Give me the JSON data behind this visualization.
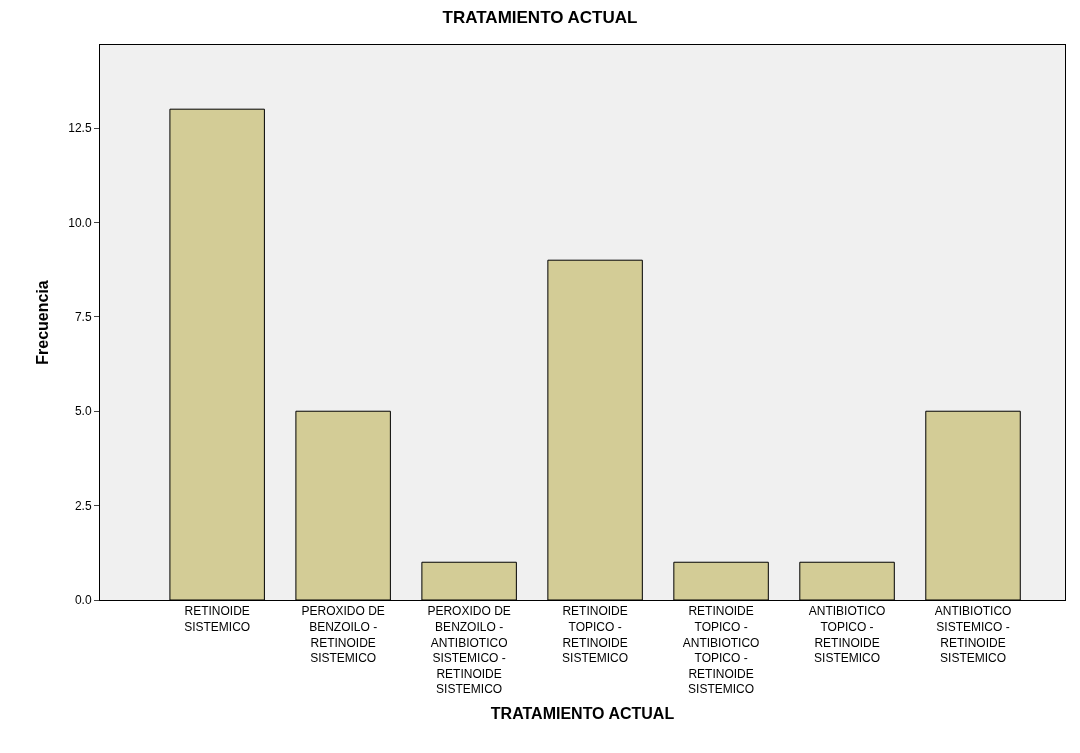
{
  "chart_data": {
    "type": "bar",
    "title": "TRATAMIENTO ACTUAL",
    "xlabel": "TRATAMIENTO ACTUAL",
    "ylabel": "Frecuencia",
    "categories": [
      "RETINOIDE SISTEMICO",
      "PEROXIDO DE BENZOILO - RETINOIDE SISTEMICO",
      "PEROXIDO DE BENZOILO - ANTIBIOTICO SISTEMICO - RETINOIDE SISTEMICO",
      "RETINOIDE TOPICO - RETINOIDE SISTEMICO",
      "RETINOIDE TOPICO - ANTIBIOTICO TOPICO - RETINOIDE SISTEMICO",
      "ANTIBIOTICO TOPICO - RETINOIDE SISTEMICO",
      "ANTIBIOTICO SISTEMICO - RETINOIDE SISTEMICO"
    ],
    "values": [
      13,
      5,
      1,
      9,
      1,
      1,
      5
    ],
    "color": "#d3cc96",
    "ylim": [
      0,
      14.7
    ],
    "yticks": [
      {
        "value": 0,
        "label": "0.0"
      },
      {
        "value": 2.5,
        "label": "2.5"
      },
      {
        "value": 5,
        "label": "5.0"
      },
      {
        "value": 7.5,
        "label": "7.5"
      },
      {
        "value": 10,
        "label": "10.0"
      },
      {
        "value": 12.5,
        "label": "12.5"
      }
    ],
    "grid": false
  }
}
